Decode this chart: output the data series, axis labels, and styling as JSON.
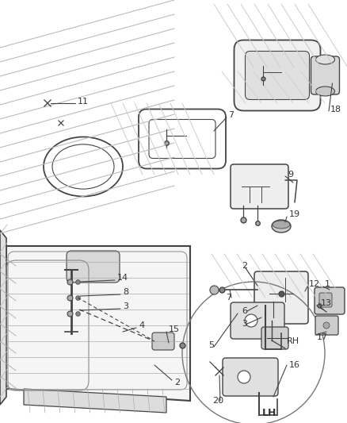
{
  "bg": "#ffffff",
  "lc": "#444444",
  "lc2": "#888888",
  "tc": "#333333",
  "figsize": [
    4.38,
    5.33
  ],
  "dpi": 100
}
